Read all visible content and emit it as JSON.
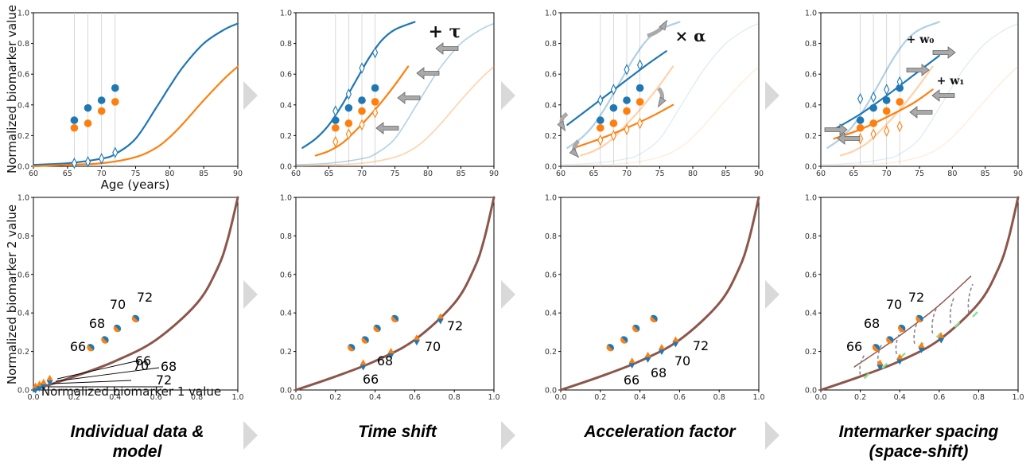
{
  "captions": [
    "Individual data &\nmodel",
    "Time shift",
    "Acceleration factor",
    "Intermarker spacing\n(space-shift)"
  ],
  "axes": {
    "top_xlabel": "Age (years)",
    "top_ylabel": "Normalized biomarker value",
    "bottom_xlabel": "Normalized biomarker 1 value",
    "bottom_ylabel": "Normalized biomarker 2 value"
  },
  "operators": {
    "time_shift": "+ τ",
    "acceleration": "× α",
    "space_shift_w0": "+ w₀",
    "space_shift_w1": "+ w₁"
  },
  "colors": {
    "biomarker1": "#1f77b4",
    "biomarker2": "#ff7f0e",
    "trajectory": "#8c564b",
    "arrow": "#a9a9a9",
    "chevron": "#d9d9d9"
  },
  "chart_data": [
    {
      "type": "line",
      "panel": "top-1",
      "xlim": [
        60,
        90
      ],
      "ylim": [
        0,
        1.0
      ],
      "xticks": [
        60,
        65,
        70,
        75,
        80,
        85,
        90
      ],
      "yticks": [
        0.0,
        0.2,
        0.4,
        0.6,
        0.8,
        1.0
      ],
      "series": [
        {
          "kind": "model-curve",
          "color": "#1f77b4",
          "x": [
            60,
            65,
            70,
            72,
            75,
            78,
            80,
            82,
            85,
            88,
            90
          ],
          "y": [
            0.01,
            0.02,
            0.05,
            0.08,
            0.18,
            0.38,
            0.52,
            0.65,
            0.8,
            0.89,
            0.93
          ]
        },
        {
          "kind": "model-curve",
          "color": "#ff7f0e",
          "x": [
            60,
            65,
            70,
            75,
            78,
            80,
            82,
            85,
            88,
            90
          ],
          "y": [
            0.0,
            0.01,
            0.02,
            0.06,
            0.12,
            0.19,
            0.28,
            0.43,
            0.57,
            0.65
          ]
        },
        {
          "kind": "observations",
          "color": "#1f77b4",
          "x": [
            66,
            68,
            70,
            72
          ],
          "y": [
            0.3,
            0.38,
            0.43,
            0.51
          ]
        },
        {
          "kind": "observations",
          "color": "#ff7f0e",
          "x": [
            66,
            68,
            70,
            72
          ],
          "y": [
            0.25,
            0.28,
            0.36,
            0.42
          ]
        },
        {
          "kind": "model-at-ages",
          "x": [
            66,
            68,
            70,
            72
          ],
          "y": [
            0.02,
            0.03,
            0.05,
            0.09
          ]
        }
      ]
    },
    {
      "type": "line",
      "panel": "top-2",
      "xlim": [
        60,
        90
      ],
      "ylim": [
        0,
        1.0
      ],
      "xticks": [
        60,
        65,
        70,
        75,
        80,
        85,
        90
      ],
      "yticks": [
        0.0,
        0.2,
        0.4,
        0.6,
        0.8,
        1.0
      ],
      "series": [
        {
          "kind": "model-curve-faded",
          "color": "#1f77b4",
          "x": [
            60,
            65,
            70,
            72,
            75,
            78,
            80,
            82,
            85,
            88,
            90
          ],
          "y": [
            0.01,
            0.02,
            0.05,
            0.08,
            0.18,
            0.38,
            0.52,
            0.65,
            0.8,
            0.89,
            0.93
          ]
        },
        {
          "kind": "model-curve-faded",
          "color": "#ff7f0e",
          "x": [
            60,
            65,
            70,
            75,
            78,
            80,
            82,
            85,
            88,
            90
          ],
          "y": [
            0.0,
            0.01,
            0.02,
            0.06,
            0.12,
            0.19,
            0.28,
            0.43,
            0.57,
            0.65
          ]
        },
        {
          "kind": "shifted-curve",
          "color": "#1f77b4",
          "x": [
            61,
            63,
            65,
            67,
            69,
            71,
            73,
            75,
            78
          ],
          "y": [
            0.12,
            0.18,
            0.27,
            0.4,
            0.55,
            0.7,
            0.82,
            0.89,
            0.94
          ]
        },
        {
          "kind": "shifted-curve",
          "color": "#ff7f0e",
          "x": [
            63,
            65,
            67,
            69,
            71,
            73,
            75,
            77
          ],
          "y": [
            0.07,
            0.1,
            0.15,
            0.23,
            0.32,
            0.42,
            0.53,
            0.65
          ]
        },
        {
          "kind": "observations",
          "color": "#1f77b4",
          "x": [
            66,
            68,
            70,
            72
          ],
          "y": [
            0.3,
            0.38,
            0.43,
            0.51
          ]
        },
        {
          "kind": "observations",
          "color": "#ff7f0e",
          "x": [
            66,
            68,
            70,
            72
          ],
          "y": [
            0.25,
            0.28,
            0.36,
            0.42
          ]
        }
      ]
    },
    {
      "type": "line",
      "panel": "top-3",
      "xlim": [
        60,
        90
      ],
      "ylim": [
        0,
        1.0
      ],
      "xticks": [
        60,
        65,
        70,
        75,
        80,
        85,
        90
      ],
      "yticks": [
        0.0,
        0.2,
        0.4,
        0.6,
        0.8,
        1.0
      ],
      "series": [
        {
          "kind": "accelerated-curve",
          "color": "#1f77b4",
          "x": [
            61,
            65,
            69,
            73,
            76
          ],
          "y": [
            0.27,
            0.4,
            0.53,
            0.66,
            0.75
          ]
        },
        {
          "kind": "accelerated-curve",
          "color": "#ff7f0e",
          "x": [
            62,
            66,
            70,
            74,
            77
          ],
          "y": [
            0.12,
            0.18,
            0.25,
            0.33,
            0.4
          ]
        },
        {
          "kind": "observations",
          "color": "#1f77b4",
          "x": [
            66,
            68,
            70,
            72
          ],
          "y": [
            0.3,
            0.38,
            0.43,
            0.51
          ]
        },
        {
          "kind": "observations",
          "color": "#ff7f0e",
          "x": [
            66,
            68,
            70,
            72
          ],
          "y": [
            0.25,
            0.28,
            0.36,
            0.42
          ]
        }
      ]
    },
    {
      "type": "line",
      "panel": "top-4",
      "xlim": [
        60,
        90
      ],
      "ylim": [
        0,
        1.0
      ],
      "xticks": [
        60,
        65,
        70,
        75,
        80,
        85,
        90
      ],
      "yticks": [
        0.0,
        0.2,
        0.4,
        0.6,
        0.8,
        1.0
      ],
      "series": [
        {
          "kind": "space-shifted-curve",
          "color": "#1f77b4",
          "x": [
            62,
            66,
            70,
            74,
            78
          ],
          "y": [
            0.24,
            0.34,
            0.46,
            0.59,
            0.72
          ]
        },
        {
          "kind": "space-shifted-curve",
          "color": "#ff7f0e",
          "x": [
            62,
            66,
            70,
            74,
            77
          ],
          "y": [
            0.18,
            0.24,
            0.32,
            0.41,
            0.5
          ]
        },
        {
          "kind": "observations",
          "color": "#1f77b4",
          "x": [
            66,
            68,
            70,
            72
          ],
          "y": [
            0.3,
            0.38,
            0.43,
            0.51
          ]
        },
        {
          "kind": "observations",
          "color": "#ff7f0e",
          "x": [
            66,
            68,
            70,
            72
          ],
          "y": [
            0.25,
            0.28,
            0.36,
            0.42
          ]
        }
      ]
    },
    {
      "type": "scatter",
      "panel": "bottom",
      "xlim": [
        0,
        1.0
      ],
      "ylim": [
        0,
        1.0
      ],
      "xticks": [
        0.0,
        0.2,
        0.4,
        0.6,
        0.8,
        1.0
      ],
      "yticks": [
        0.0,
        0.2,
        0.4,
        0.6,
        0.8,
        1.0
      ],
      "trajectory": {
        "x": [
          0,
          0.2,
          0.4,
          0.6,
          0.8,
          0.9,
          0.95,
          1.0
        ],
        "y": [
          0,
          0.07,
          0.15,
          0.26,
          0.45,
          0.63,
          0.78,
          1.0
        ]
      },
      "observations": {
        "ages": [
          "66",
          "68",
          "70",
          "72"
        ],
        "x": [
          0.28,
          0.35,
          0.41,
          0.5
        ],
        "y": [
          0.22,
          0.26,
          0.32,
          0.37
        ]
      },
      "model_points": [
        {
          "panel": 1,
          "x": [
            0.01,
            0.03,
            0.05,
            0.08
          ],
          "y": [
            0.01,
            0.02,
            0.03,
            0.05
          ]
        },
        {
          "panel": 2,
          "x": [
            0.34,
            0.48,
            0.61,
            0.73
          ],
          "y": [
            0.13,
            0.19,
            0.26,
            0.37
          ]
        },
        {
          "panel": 3,
          "x": [
            0.36,
            0.44,
            0.51,
            0.58
          ],
          "y": [
            0.14,
            0.17,
            0.21,
            0.25
          ]
        },
        {
          "panel": 4,
          "x": [
            0.3,
            0.4,
            0.51,
            0.61
          ],
          "y": [
            0.13,
            0.16,
            0.22,
            0.27
          ]
        }
      ]
    }
  ]
}
